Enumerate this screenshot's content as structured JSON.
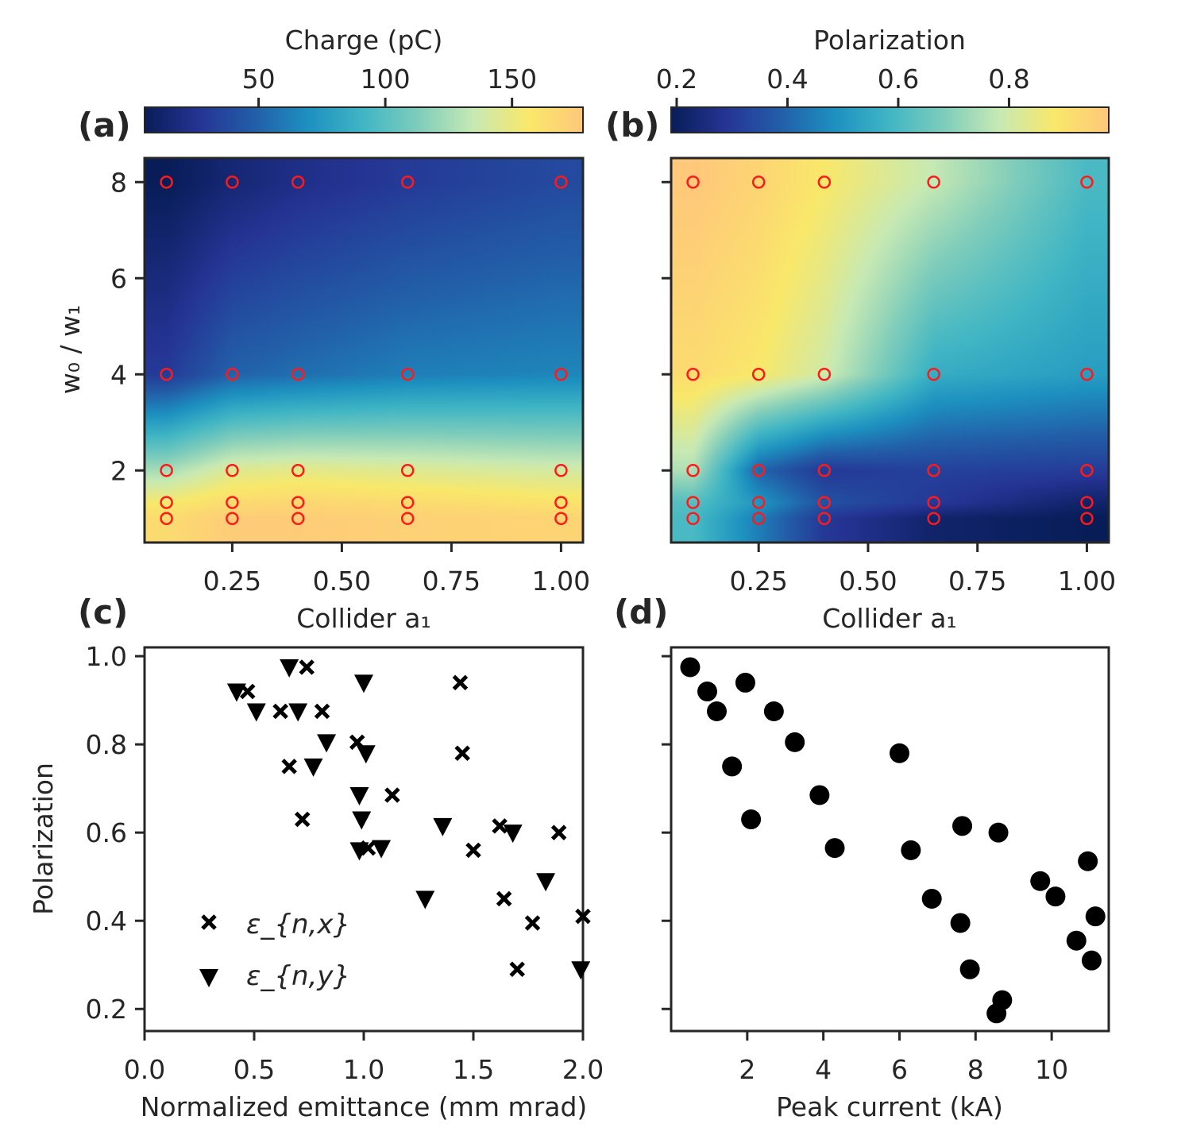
{
  "figure": {
    "panels": {
      "a": {
        "label": "(a)",
        "colorbar_label": "Charge (pC)",
        "colorbar_ticks": [
          "50",
          "100",
          "150"
        ],
        "xlabel": "Collider a₁",
        "ylabel": "w₀ / w₁"
      },
      "b": {
        "label": "(b)",
        "colorbar_label": "Polarization",
        "colorbar_ticks": [
          "0.2",
          "0.4",
          "0.6",
          "0.8"
        ],
        "xlabel": "Collider a₁"
      },
      "c": {
        "label": "(c)",
        "xlabel": "Normalized emittance (mm mrad)",
        "ylabel": "Polarization",
        "legend": [
          "ε_{n,x}",
          "ε_{n,y}"
        ]
      },
      "d": {
        "label": "(d)",
        "xlabel": "Peak current (kA)"
      }
    }
  },
  "chart_data": [
    {
      "id": "a",
      "type": "heatmap",
      "colorbar": {
        "label": "Charge (pC)",
        "range": [
          5,
          178
        ],
        "ticks": [
          50,
          100,
          150
        ],
        "colormap": "YlGnBu_r"
      },
      "xlabel": "Collider a₁",
      "ylabel": "w₀ / w₁",
      "xlim": [
        0.05,
        1.05
      ],
      "ylim": [
        0.5,
        8.5
      ],
      "xticks": [
        0.25,
        0.5,
        0.75,
        1.0
      ],
      "xtick_labels": [
        "0.25",
        "0.50",
        "0.75",
        "1.00"
      ],
      "yticks": [
        2,
        4,
        6,
        8
      ],
      "grid_x": [
        0.1,
        0.25,
        0.4,
        0.65,
        1.0
      ],
      "grid_y": [
        1,
        1.333,
        2,
        4,
        8
      ],
      "z": [
        [
          165,
          175,
          175,
          172,
          170
        ],
        [
          155,
          165,
          168,
          165,
          160
        ],
        [
          125,
          145,
          148,
          145,
          140
        ],
        [
          30,
          50,
          55,
          62,
          65
        ],
        [
          5,
          15,
          22,
          30,
          38
        ]
      ],
      "sample_points_marker": "red open circle"
    },
    {
      "id": "b",
      "type": "heatmap",
      "colorbar": {
        "label": "Polarization",
        "range": [
          0.19,
          0.98
        ],
        "ticks": [
          0.2,
          0.4,
          0.6,
          0.8
        ],
        "colormap": "YlGnBu_r"
      },
      "xlabel": "Collider a₁",
      "xlim": [
        0.05,
        1.05
      ],
      "ylim": [
        0.5,
        8.5
      ],
      "xticks": [
        0.25,
        0.5,
        0.75,
        1.0
      ],
      "xtick_labels": [
        "0.25",
        "0.50",
        "0.75",
        "1.00"
      ],
      "yticks": [
        2,
        4,
        6,
        8
      ],
      "grid_x": [
        0.1,
        0.25,
        0.4,
        0.65,
        1.0
      ],
      "grid_y": [
        1,
        1.333,
        2,
        4,
        8
      ],
      "z": [
        [
          0.6,
          0.45,
          0.3,
          0.22,
          0.19
        ],
        [
          0.62,
          0.5,
          0.36,
          0.3,
          0.22
        ],
        [
          0.75,
          0.4,
          0.3,
          0.32,
          0.31
        ],
        [
          0.92,
          0.88,
          0.8,
          0.56,
          0.52
        ],
        [
          0.98,
          0.94,
          0.88,
          0.78,
          0.6
        ]
      ],
      "sample_points_marker": "red open circle"
    },
    {
      "id": "c",
      "type": "scatter",
      "xlabel": "Normalized emittance (mm mrad)",
      "ylabel": "Polarization",
      "xlim": [
        0,
        2.0
      ],
      "ylim": [
        0.15,
        1.02
      ],
      "xticks": [
        0.0,
        0.5,
        1.0,
        1.5,
        2.0
      ],
      "xtick_labels": [
        "0.0",
        "0.5",
        "1.0",
        "1.5",
        "2.0"
      ],
      "yticks": [
        0.2,
        0.4,
        0.6,
        0.8,
        1.0
      ],
      "ytick_labels": [
        "0.2",
        "0.4",
        "0.6",
        "0.8",
        "1.0"
      ],
      "legend_placement": "lower-left",
      "series": [
        {
          "name": "ε_{n,x}",
          "marker": "x",
          "points": [
            [
              0.47,
              0.92
            ],
            [
              0.62,
              0.875
            ],
            [
              0.66,
              0.75
            ],
            [
              0.74,
              0.975
            ],
            [
              0.72,
              0.63
            ],
            [
              0.81,
              0.875
            ],
            [
              0.97,
              0.805
            ],
            [
              1.02,
              0.565
            ],
            [
              1.13,
              0.685
            ],
            [
              1.44,
              0.94
            ],
            [
              1.45,
              0.78
            ],
            [
              1.5,
              0.56
            ],
            [
              1.62,
              0.615
            ],
            [
              1.64,
              0.45
            ],
            [
              1.7,
              0.29
            ],
            [
              1.77,
              0.395
            ],
            [
              1.89,
              0.6
            ],
            [
              2.0,
              0.41
            ]
          ]
        },
        {
          "name": "ε_{n,y}",
          "marker": "triangle-down",
          "points": [
            [
              0.42,
              0.92
            ],
            [
              0.51,
              0.875
            ],
            [
              0.66,
              0.975
            ],
            [
              0.7,
              0.875
            ],
            [
              0.77,
              0.75
            ],
            [
              0.83,
              0.805
            ],
            [
              0.98,
              0.685
            ],
            [
              0.99,
              0.63
            ],
            [
              1.0,
              0.94
            ],
            [
              1.01,
              0.78
            ],
            [
              0.98,
              0.56
            ],
            [
              1.08,
              0.565
            ],
            [
              1.28,
              0.45
            ],
            [
              1.36,
              0.615
            ],
            [
              1.68,
              0.6
            ],
            [
              1.83,
              0.49
            ],
            [
              1.99,
              0.29
            ]
          ]
        }
      ]
    },
    {
      "id": "d",
      "type": "scatter",
      "xlabel": "Peak current (kA)",
      "xlim": [
        0,
        11.5
      ],
      "ylim": [
        0.15,
        1.02
      ],
      "xticks": [
        2,
        4,
        6,
        8,
        10
      ],
      "yticks": [
        0.2,
        0.4,
        0.6,
        0.8,
        1.0
      ],
      "series": [
        {
          "marker": "filled circle",
          "points": [
            [
              0.5,
              0.975
            ],
            [
              0.95,
              0.92
            ],
            [
              1.2,
              0.875
            ],
            [
              1.6,
              0.75
            ],
            [
              1.95,
              0.94
            ],
            [
              2.1,
              0.63
            ],
            [
              2.7,
              0.875
            ],
            [
              3.25,
              0.805
            ],
            [
              3.9,
              0.685
            ],
            [
              4.3,
              0.565
            ],
            [
              6.0,
              0.78
            ],
            [
              6.3,
              0.56
            ],
            [
              6.85,
              0.45
            ],
            [
              7.6,
              0.395
            ],
            [
              7.65,
              0.615
            ],
            [
              7.85,
              0.29
            ],
            [
              8.55,
              0.19
            ],
            [
              8.6,
              0.6
            ],
            [
              8.7,
              0.22
            ],
            [
              9.7,
              0.49
            ],
            [
              10.1,
              0.455
            ],
            [
              10.65,
              0.355
            ],
            [
              10.95,
              0.535
            ],
            [
              11.05,
              0.31
            ],
            [
              11.15,
              0.41
            ]
          ]
        }
      ]
    }
  ]
}
